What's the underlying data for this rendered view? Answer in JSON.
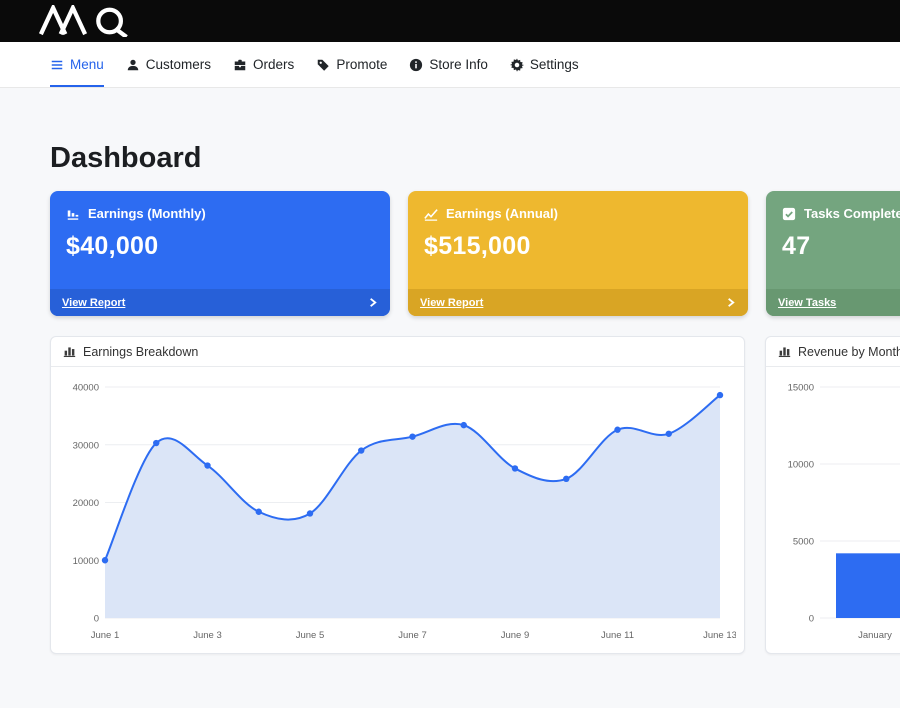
{
  "theme": {
    "accent": "#2563eb",
    "topbar_bg": "#0a0a0a",
    "content_bg": "#f7f8fa"
  },
  "topbar": {
    "logo": "MQ"
  },
  "nav": {
    "items": [
      {
        "label": "Menu",
        "icon": "hamburger-icon",
        "active": true
      },
      {
        "label": "Customers",
        "icon": "person-icon",
        "active": false
      },
      {
        "label": "Orders",
        "icon": "briefcase-icon",
        "active": false
      },
      {
        "label": "Promote",
        "icon": "tag-icon",
        "active": false
      },
      {
        "label": "Store Info",
        "icon": "info-icon",
        "active": false
      },
      {
        "label": "Settings",
        "icon": "gear-icon",
        "active": false
      }
    ]
  },
  "page": {
    "title": "Dashboard"
  },
  "stat_cards": [
    {
      "title": "Earnings (Monthly)",
      "value": "$40,000",
      "link_label": "View Report",
      "icon": "bar-chart-icon",
      "bg": "#2d6cf2",
      "footer_bg": "#2760d8"
    },
    {
      "title": "Earnings (Annual)",
      "value": "$515,000",
      "link_label": "View Report",
      "icon": "line-chart-icon",
      "bg": "#eeb82f",
      "footer_bg": "#d9a524"
    },
    {
      "title": "Tasks Completed",
      "value": "47",
      "link_label": "View Tasks",
      "icon": "check-square-icon",
      "bg": "#74a57f",
      "footer_bg": "#689871"
    }
  ],
  "chart_data": [
    {
      "type": "area",
      "title": "Earnings Breakdown",
      "x": [
        "June 1",
        "June 2",
        "June 3",
        "June 4",
        "June 5",
        "June 6",
        "June 7",
        "June 8",
        "June 9",
        "June 10",
        "June 11",
        "June 12",
        "June 13"
      ],
      "values": [
        10000,
        30300,
        26400,
        18400,
        18100,
        29000,
        31400,
        33400,
        25900,
        24100,
        32600,
        31900,
        38600
      ],
      "ylim": [
        0,
        40000
      ],
      "yticks": [
        0,
        10000,
        20000,
        30000,
        40000
      ],
      "xtick_indices": [
        0,
        2,
        4,
        6,
        8,
        10,
        12
      ],
      "line_color": "#2d6cf2",
      "fill_color": "#dbe5f7",
      "grid": true,
      "legend": false
    },
    {
      "type": "bar",
      "title": "Revenue by Month",
      "categories": [
        "January"
      ],
      "values": [
        4200
      ],
      "ylim": [
        0,
        15000
      ],
      "yticks": [
        0,
        5000,
        10000,
        15000
      ],
      "bar_color": "#2d6cf2",
      "grid": true,
      "legend": false
    }
  ]
}
